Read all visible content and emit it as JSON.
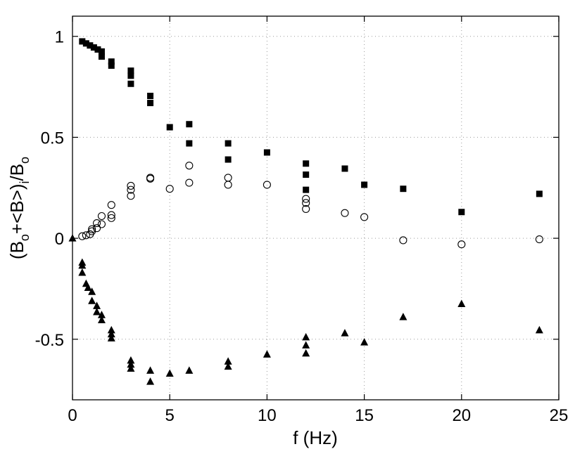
{
  "chart_data": {
    "type": "scatter",
    "title": "",
    "xlabel": "f (Hz)",
    "ylabel_parts": [
      "(B",
      "o",
      "+<B>)",
      "i",
      "/B",
      "o"
    ],
    "xlim": [
      0,
      25
    ],
    "ylim": [
      -0.8,
      1.1
    ],
    "xticks": [
      0,
      5,
      10,
      15,
      20,
      25
    ],
    "xtick_labels": [
      "0",
      "5",
      "10",
      "15",
      "20",
      "25"
    ],
    "yticks": [
      -0.5,
      0,
      0.5,
      1
    ],
    "ytick_labels": [
      "-0.5",
      "0",
      "0.5",
      "1"
    ],
    "grid": true,
    "legend": "none",
    "series": [
      {
        "marker": "filled-square",
        "color": "#000000",
        "points": [
          [
            0.5,
            0.975
          ],
          [
            0.7,
            0.965
          ],
          [
            0.9,
            0.955
          ],
          [
            1.1,
            0.945
          ],
          [
            1.3,
            0.935
          ],
          [
            1.5,
            0.925
          ],
          [
            1.5,
            0.9
          ],
          [
            2.0,
            0.875
          ],
          [
            2.0,
            0.855
          ],
          [
            3.0,
            0.83
          ],
          [
            3.0,
            0.805
          ],
          [
            3.0,
            0.765
          ],
          [
            4.0,
            0.705
          ],
          [
            4.0,
            0.67
          ],
          [
            5.0,
            0.55
          ],
          [
            6.0,
            0.565
          ],
          [
            6.0,
            0.47
          ],
          [
            8.0,
            0.47
          ],
          [
            8.0,
            0.39
          ],
          [
            10.0,
            0.425
          ],
          [
            12.0,
            0.37
          ],
          [
            12.0,
            0.315
          ],
          [
            12.0,
            0.24
          ],
          [
            14.0,
            0.345
          ],
          [
            15.0,
            0.265
          ],
          [
            17.0,
            0.245
          ],
          [
            20.0,
            0.13
          ],
          [
            24.0,
            0.22
          ]
        ]
      },
      {
        "marker": "open-circle",
        "color": "#000000",
        "points": [
          [
            0.5,
            0.01
          ],
          [
            0.7,
            0.015
          ],
          [
            0.9,
            0.02
          ],
          [
            1.0,
            0.035
          ],
          [
            1.0,
            0.045
          ],
          [
            1.25,
            0.05
          ],
          [
            1.25,
            0.075
          ],
          [
            1.5,
            0.07
          ],
          [
            1.5,
            0.11
          ],
          [
            2.0,
            0.1
          ],
          [
            2.0,
            0.115
          ],
          [
            2.0,
            0.165
          ],
          [
            3.0,
            0.21
          ],
          [
            3.0,
            0.24
          ],
          [
            3.0,
            0.26
          ],
          [
            4.0,
            0.295
          ],
          [
            4.0,
            0.3
          ],
          [
            5.0,
            0.245
          ],
          [
            6.0,
            0.36
          ],
          [
            6.0,
            0.275
          ],
          [
            8.0,
            0.3
          ],
          [
            8.0,
            0.265
          ],
          [
            10.0,
            0.265
          ],
          [
            12.0,
            0.195
          ],
          [
            12.0,
            0.175
          ],
          [
            12.0,
            0.145
          ],
          [
            14.0,
            0.125
          ],
          [
            15.0,
            0.105
          ],
          [
            17.0,
            -0.01
          ],
          [
            20.0,
            -0.03
          ],
          [
            24.0,
            -0.005
          ]
        ]
      },
      {
        "marker": "filled-triangle",
        "color": "#000000",
        "points": [
          [
            0.0,
            0.0
          ],
          [
            0.5,
            -0.12
          ],
          [
            0.5,
            -0.135
          ],
          [
            0.5,
            -0.17
          ],
          [
            0.7,
            -0.225
          ],
          [
            0.8,
            -0.245
          ],
          [
            1.0,
            -0.265
          ],
          [
            1.0,
            -0.31
          ],
          [
            1.25,
            -0.335
          ],
          [
            1.25,
            -0.365
          ],
          [
            1.5,
            -0.38
          ],
          [
            1.5,
            -0.405
          ],
          [
            2.0,
            -0.455
          ],
          [
            2.0,
            -0.475
          ],
          [
            2.0,
            -0.495
          ],
          [
            3.0,
            -0.605
          ],
          [
            3.0,
            -0.625
          ],
          [
            3.0,
            -0.645
          ],
          [
            4.0,
            -0.655
          ],
          [
            4.0,
            -0.71
          ],
          [
            5.0,
            -0.67
          ],
          [
            6.0,
            -0.655
          ],
          [
            8.0,
            -0.61
          ],
          [
            8.0,
            -0.635
          ],
          [
            10.0,
            -0.575
          ],
          [
            12.0,
            -0.49
          ],
          [
            12.0,
            -0.53
          ],
          [
            12.0,
            -0.57
          ],
          [
            14.0,
            -0.47
          ],
          [
            15.0,
            -0.515
          ],
          [
            17.0,
            -0.39
          ],
          [
            20.0,
            -0.325
          ],
          [
            24.0,
            -0.455
          ]
        ]
      }
    ]
  }
}
